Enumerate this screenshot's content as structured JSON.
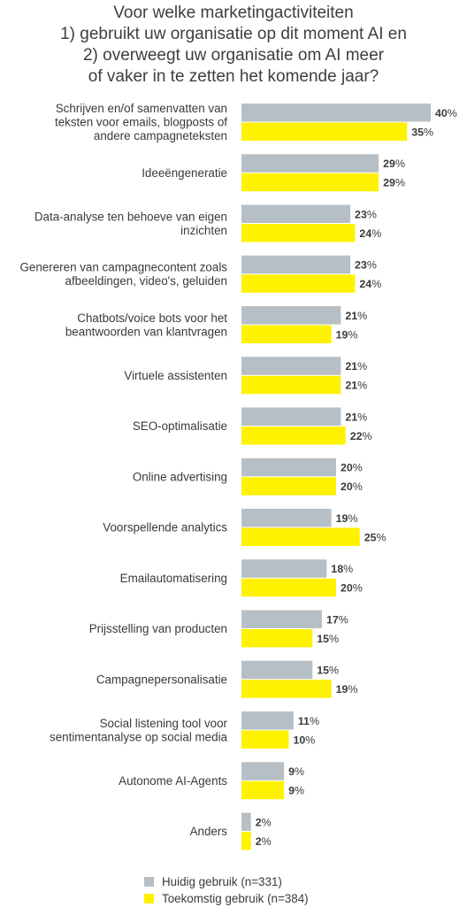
{
  "chart_data": {
    "type": "bar",
    "orientation": "horizontal",
    "title_lines": [
      "Voor welke marketingactiviteiten",
      "1) gebruikt uw organisatie op dit moment AI en",
      "2) overweegt uw organisatie om AI meer",
      "of vaker in te zetten het komende jaar?"
    ],
    "value_suffix": "%",
    "categories": [
      [
        "Schrijven en/of samenvatten van",
        "teksten voor emails, blogposts of",
        "andere campagneteksten"
      ],
      [
        "Ideeëngeneratie"
      ],
      [
        "Data-analyse ten behoeve van eigen",
        "inzichten"
      ],
      [
        "Genereren van campagnecontent zoals",
        "afbeeldingen, video's, geluiden"
      ],
      [
        "Chatbots/voice bots voor het",
        "beantwoorden van klantvragen"
      ],
      [
        "Virtuele assistenten"
      ],
      [
        "SEO-optimalisatie"
      ],
      [
        "Online advertising"
      ],
      [
        "Voorspellende analytics"
      ],
      [
        "Emailautomatisering"
      ],
      [
        "Prijsstelling van producten"
      ],
      [
        "Campagnepersonalisatie"
      ],
      [
        "Social listening tool voor",
        "sentimentanalyse op social media"
      ],
      [
        "Autonome AI-Agents"
      ],
      [
        "Anders"
      ]
    ],
    "series": [
      {
        "name": "Huidig gebruik (n=331)",
        "color": "#b7bfc6",
        "values": [
          40,
          29,
          23,
          23,
          21,
          21,
          21,
          20,
          19,
          18,
          17,
          15,
          11,
          9,
          2
        ]
      },
      {
        "name": "Toekomstig gebruik (n=384)",
        "color": "#fff200",
        "values": [
          35,
          29,
          24,
          24,
          19,
          21,
          22,
          20,
          25,
          20,
          15,
          19,
          10,
          9,
          2
        ]
      }
    ],
    "xlim": [
      0,
      40
    ],
    "grid": false,
    "legend_position": "bottom"
  }
}
